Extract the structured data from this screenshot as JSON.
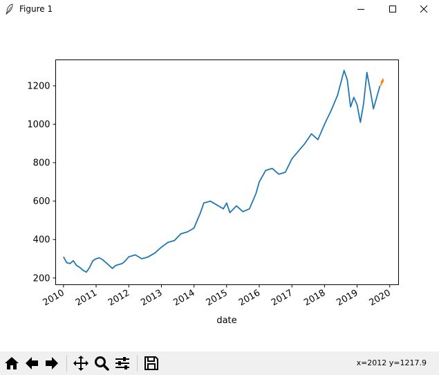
{
  "window": {
    "title": "Figure 1",
    "icon": "feather-icon"
  },
  "toolbar": {
    "buttons": [
      {
        "name": "home-button",
        "icon": "home-icon"
      },
      {
        "name": "back-button",
        "icon": "back-arrow-icon"
      },
      {
        "name": "forward-button",
        "icon": "forward-arrow-icon"
      },
      {
        "name": "pan-button",
        "icon": "pan-move-icon"
      },
      {
        "name": "zoom-button",
        "icon": "zoom-magnifier-icon"
      },
      {
        "name": "subplots-button",
        "icon": "configure-subplots-icon"
      },
      {
        "name": "save-button",
        "icon": "save-floppy-icon"
      }
    ],
    "coords": "x=2012 y=1217.9"
  },
  "chart_data": {
    "type": "line",
    "title": "",
    "xlabel": "date",
    "ylabel": "",
    "x_ticks": [
      "2010",
      "2011",
      "2012",
      "2013",
      "2014",
      "2015",
      "2016",
      "2017",
      "2018",
      "2019",
      "2020"
    ],
    "y_ticks": [
      200,
      400,
      600,
      800,
      1000,
      1200
    ],
    "xlim": [
      2009.76,
      2020.27
    ],
    "ylim": [
      165,
      1335
    ],
    "grid": false,
    "series": [
      {
        "color": "#1f77b4",
        "x": [
          2010.0,
          2010.1,
          2010.2,
          2010.3,
          2010.4,
          2010.5,
          2010.6,
          2010.7,
          2010.8,
          2010.9,
          2011.0,
          2011.1,
          2011.2,
          2011.3,
          2011.4,
          2011.5,
          2011.6,
          2011.7,
          2011.8,
          2011.9,
          2012.0,
          2012.2,
          2012.4,
          2012.6,
          2012.8,
          2013.0,
          2013.2,
          2013.4,
          2013.6,
          2013.8,
          2014.0,
          2014.1,
          2014.2,
          2014.3,
          2014.5,
          2014.7,
          2014.9,
          2015.0,
          2015.1,
          2015.3,
          2015.5,
          2015.7,
          2015.9,
          2016.0,
          2016.2,
          2016.4,
          2016.6,
          2016.8,
          2017.0,
          2017.2,
          2017.4,
          2017.6,
          2017.8,
          2018.0,
          2018.2,
          2018.4,
          2018.6,
          2018.7,
          2018.8,
          2018.9,
          2019.0,
          2019.1,
          2019.2,
          2019.3,
          2019.4,
          2019.5,
          2019.6,
          2019.7
        ],
        "y": [
          310,
          280,
          275,
          290,
          265,
          255,
          240,
          230,
          255,
          290,
          300,
          305,
          295,
          280,
          265,
          250,
          265,
          270,
          275,
          290,
          310,
          320,
          300,
          310,
          330,
          360,
          385,
          395,
          430,
          440,
          460,
          500,
          540,
          590,
          600,
          580,
          560,
          590,
          540,
          575,
          545,
          560,
          640,
          700,
          760,
          770,
          740,
          750,
          820,
          860,
          900,
          950,
          920,
          1000,
          1070,
          1150,
          1280,
          1230,
          1090,
          1140,
          1100,
          1010,
          1110,
          1270,
          1180,
          1080,
          1140,
          1200
        ]
      },
      {
        "color": "#ff7f0e",
        "x": [
          2019.73,
          2019.75,
          2019.77,
          2019.79,
          2019.8
        ],
        "y": [
          1200,
          1225,
          1215,
          1235,
          1220
        ]
      }
    ]
  }
}
